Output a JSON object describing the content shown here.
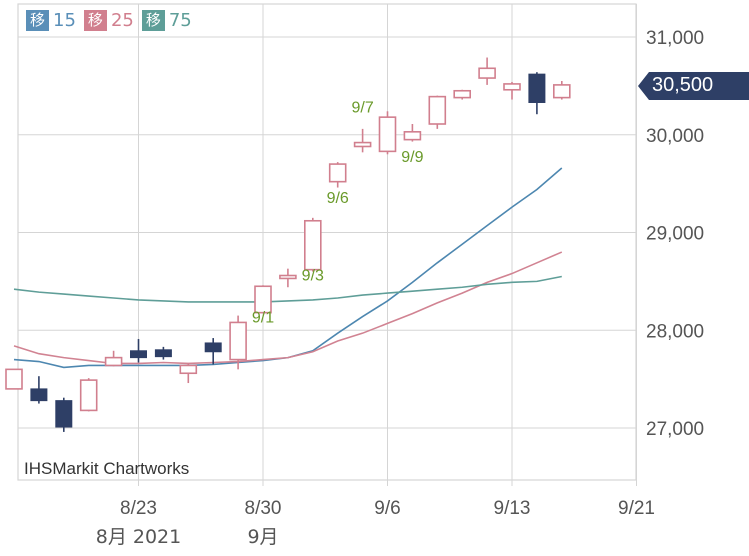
{
  "legend": [
    {
      "tag": "移",
      "label": "15",
      "color": "#5a8fb8"
    },
    {
      "tag": "移",
      "label": "25",
      "color": "#d17f8e"
    },
    {
      "tag": "移",
      "label": "75",
      "color": "#5e9e98"
    }
  ],
  "watermark": "IHSMarkit Chartworks",
  "current_price": {
    "label": "30,500",
    "value": 30500,
    "color": "#2e3f66"
  },
  "chart_data": {
    "type": "candlestick",
    "ylim": [
      26500,
      31200
    ],
    "y_ticks": [
      {
        "value": 31000,
        "label": "31,000"
      },
      {
        "value": 30000,
        "label": "30,000"
      },
      {
        "value": 29000,
        "label": "29,000"
      },
      {
        "value": 28000,
        "label": "28,000"
      },
      {
        "value": 27000,
        "label": "27,000"
      }
    ],
    "x_ticks": [
      {
        "day": 5,
        "label": "8/23"
      },
      {
        "day": 10,
        "label": "8/30"
      },
      {
        "day": 15,
        "label": "9/6"
      },
      {
        "day": 20,
        "label": "9/13"
      },
      {
        "day": 25,
        "label": "9/21"
      }
    ],
    "x_sublabels": [
      {
        "day": 5,
        "label": "8月 2021"
      },
      {
        "day": 10,
        "label": "9月"
      }
    ],
    "candles": [
      {
        "day": 0,
        "open": 27600,
        "high": 27600,
        "low": 27400,
        "close": 27400,
        "up": true
      },
      {
        "day": 1,
        "open": 27400,
        "high": 27530,
        "low": 27250,
        "close": 27280,
        "up": false
      },
      {
        "day": 2,
        "open": 27280,
        "high": 27310,
        "low": 26960,
        "close": 27010,
        "up": false
      },
      {
        "day": 3,
        "open": 27180,
        "high": 27510,
        "low": 27170,
        "close": 27490,
        "up": true
      },
      {
        "day": 4,
        "open": 27640,
        "high": 27790,
        "low": 27630,
        "close": 27720,
        "up": true
      },
      {
        "day": 5,
        "open": 27790,
        "high": 27910,
        "low": 27670,
        "close": 27720,
        "up": false
      },
      {
        "day": 6,
        "open": 27800,
        "high": 27830,
        "low": 27700,
        "close": 27730,
        "up": false
      },
      {
        "day": 7,
        "open": 27560,
        "high": 27660,
        "low": 27460,
        "close": 27640,
        "up": true
      },
      {
        "day": 8,
        "open": 27870,
        "high": 27920,
        "low": 27650,
        "close": 27780,
        "up": false
      },
      {
        "day": 9,
        "open": 27700,
        "high": 28150,
        "low": 27600,
        "close": 28080,
        "up": true
      },
      {
        "day": 10,
        "open": 28180,
        "high": 28460,
        "low": 28180,
        "close": 28450,
        "up": true
      },
      {
        "day": 11,
        "open": 28530,
        "high": 28630,
        "low": 28440,
        "close": 28560,
        "up": true
      },
      {
        "day": 12,
        "open": 28620,
        "high": 29150,
        "low": 28600,
        "close": 29120,
        "up": true
      },
      {
        "day": 13,
        "open": 29520,
        "high": 29720,
        "low": 29460,
        "close": 29700,
        "up": true
      },
      {
        "day": 14,
        "open": 29880,
        "high": 30060,
        "low": 29820,
        "close": 29920,
        "up": true
      },
      {
        "day": 15,
        "open": 29830,
        "high": 30240,
        "low": 29800,
        "close": 30180,
        "up": true
      },
      {
        "day": 16,
        "open": 29950,
        "high": 30110,
        "low": 29930,
        "close": 30030,
        "up": true
      },
      {
        "day": 17,
        "open": 30110,
        "high": 30400,
        "low": 30060,
        "close": 30390,
        "up": true
      },
      {
        "day": 18,
        "open": 30380,
        "high": 30460,
        "low": 30360,
        "close": 30450,
        "up": true
      },
      {
        "day": 19,
        "open": 30580,
        "high": 30790,
        "low": 30510,
        "close": 30680,
        "up": true
      },
      {
        "day": 20,
        "open": 30460,
        "high": 30540,
        "low": 30360,
        "close": 30520,
        "up": true
      },
      {
        "day": 21,
        "open": 30620,
        "high": 30640,
        "low": 30210,
        "close": 30330,
        "up": false
      },
      {
        "day": 22,
        "open": 30380,
        "high": 30550,
        "low": 30360,
        "close": 30510,
        "up": true
      }
    ],
    "annotations": [
      {
        "day": 10,
        "value": 28080,
        "label": "9/1"
      },
      {
        "day": 12,
        "value": 28510,
        "label": "9/3"
      },
      {
        "day": 13,
        "value": 29300,
        "label": "9/6"
      },
      {
        "day": 14,
        "value": 30230,
        "label": "9/7"
      },
      {
        "day": 16,
        "value": 29720,
        "label": "9/9"
      }
    ],
    "series": [
      {
        "name": "15",
        "color": "#4d87b0",
        "x": [
          0,
          1,
          2,
          3,
          4,
          5,
          6,
          7,
          8,
          9,
          10,
          11,
          12,
          13,
          14,
          15,
          16,
          17,
          18,
          19,
          20,
          21,
          22
        ],
        "values": [
          27700,
          27680,
          27620,
          27640,
          27640,
          27640,
          27640,
          27640,
          27650,
          27670,
          27690,
          27720,
          27790,
          27970,
          28140,
          28300,
          28490,
          28690,
          28880,
          29070,
          29260,
          29440,
          29660
        ]
      },
      {
        "name": "25",
        "color": "#d18392",
        "x": [
          0,
          1,
          2,
          3,
          4,
          5,
          6,
          7,
          8,
          9,
          10,
          11,
          12,
          13,
          14,
          15,
          16,
          17,
          18,
          19,
          20,
          21,
          22
        ],
        "values": [
          27840,
          27760,
          27720,
          27690,
          27660,
          27660,
          27670,
          27660,
          27670,
          27680,
          27700,
          27720,
          27780,
          27890,
          27970,
          28070,
          28170,
          28280,
          28380,
          28490,
          28580,
          28690,
          28800
        ]
      },
      {
        "name": "75",
        "color": "#5f9e98",
        "x": [
          0,
          1,
          2,
          3,
          4,
          5,
          6,
          7,
          8,
          9,
          10,
          11,
          12,
          13,
          14,
          15,
          16,
          17,
          18,
          19,
          20,
          21,
          22
        ],
        "values": [
          28420,
          28390,
          28370,
          28350,
          28330,
          28310,
          28300,
          28290,
          28290,
          28290,
          28290,
          28300,
          28310,
          28330,
          28360,
          28380,
          28400,
          28420,
          28440,
          28470,
          28490,
          28500,
          28550
        ]
      }
    ],
    "grid": true,
    "up_color": "#d17f8e",
    "down_color": "#2e3f66",
    "grid_color": "#d5d5d5",
    "axis_text_color": "#555555",
    "annotation_color": "#6a9a2a"
  }
}
